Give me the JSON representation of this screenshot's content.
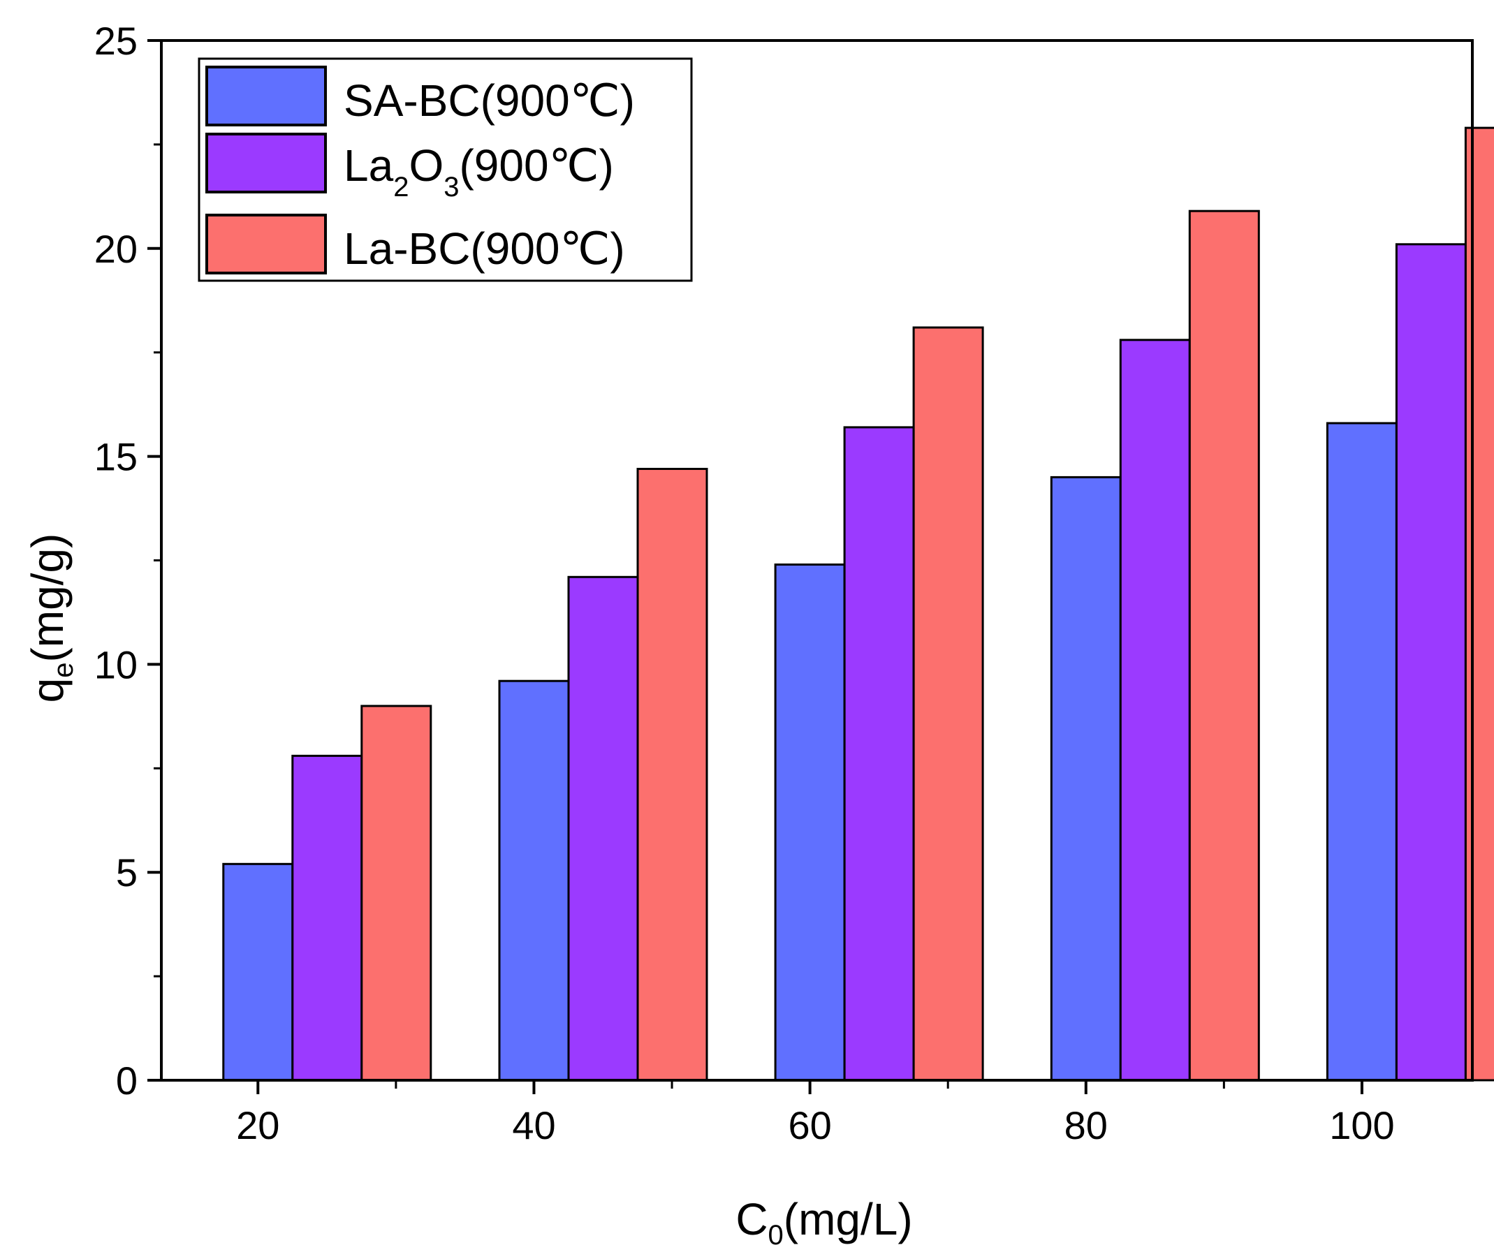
{
  "chart_data": {
    "type": "bar",
    "title": "",
    "xlabel": {
      "main": "C",
      "sub": "0",
      "rest": "(mg/L)"
    },
    "ylabel": {
      "main": "q",
      "sub": "e",
      "rest": "(mg/g)"
    },
    "categories": [
      "20",
      "40",
      "60",
      "80",
      "100"
    ],
    "series": [
      {
        "name": "SA-BC(900℃)",
        "label": {
          "pre": "SA-BC(900℃)",
          "sub1": "",
          "mid": "",
          "sub2": "",
          "post": ""
        },
        "color": "#6070ff",
        "values": [
          5.2,
          9.6,
          12.4,
          14.5,
          15.8
        ]
      },
      {
        "name": "La2O3(900℃)",
        "label": {
          "pre": "La",
          "sub1": "2",
          "mid": "O",
          "sub2": "3",
          "post": "(900℃)"
        },
        "color": "#9b3aff",
        "values": [
          7.8,
          12.1,
          15.7,
          17.8,
          20.1
        ]
      },
      {
        "name": "La-BC(900℃)",
        "label": {
          "pre": "La-BC(900℃)",
          "sub1": "",
          "mid": "",
          "sub2": "",
          "post": ""
        },
        "color": "#fc706e",
        "values": [
          9.0,
          14.7,
          18.1,
          20.9,
          22.9
        ]
      }
    ],
    "ylim": [
      0,
      25
    ],
    "yticks": [
      "0",
      "5",
      "10",
      "15",
      "20",
      "25"
    ],
    "legend_position": "top-left",
    "grid": false
  }
}
